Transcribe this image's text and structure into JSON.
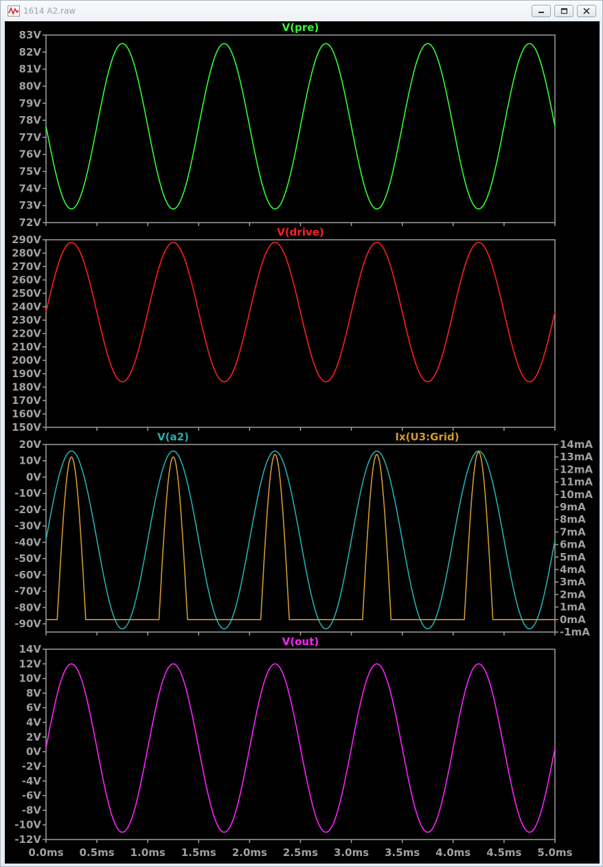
{
  "window": {
    "title": "1614 A2.raw",
    "icons": [
      "waveform-app-icon",
      "minimize-icon",
      "restore-icon",
      "close-icon"
    ]
  },
  "chart_data": [
    {
      "type": "line",
      "title": "V(pre)",
      "x_ticks": [
        "0.0ms",
        "0.5ms",
        "1.0ms",
        "1.5ms",
        "2.0ms",
        "2.5ms",
        "3.0ms",
        "3.5ms",
        "4.0ms",
        "4.5ms",
        "5.0ms"
      ],
      "xlim": [
        0,
        5
      ],
      "ylim": [
        72,
        83
      ],
      "y_ticks": [
        "72V",
        "73V",
        "74V",
        "75V",
        "76V",
        "77V",
        "78V",
        "79V",
        "80V",
        "81V",
        "82V",
        "83V"
      ],
      "series": [
        {
          "name": "V(pre)",
          "color": "#33ff33",
          "kind": "sine",
          "offset": 77.65,
          "amplitude": 4.85,
          "period_ms": 1,
          "phase": -1
        }
      ]
    },
    {
      "type": "line",
      "title": "V(drive)",
      "xlim": [
        0,
        5
      ],
      "ylim": [
        150,
        290
      ],
      "y_ticks": [
        "150V",
        "160V",
        "170V",
        "180V",
        "190V",
        "200V",
        "210V",
        "220V",
        "230V",
        "240V",
        "250V",
        "260V",
        "270V",
        "280V",
        "290V"
      ],
      "series": [
        {
          "name": "V(drive)",
          "color": "#ff2020",
          "kind": "sine",
          "offset": 236,
          "amplitude": 52,
          "period_ms": 1,
          "phase": 1
        }
      ]
    },
    {
      "type": "line",
      "xlim": [
        0,
        5
      ],
      "ylim": [
        -95,
        20
      ],
      "y_ticks": [
        "-90V",
        "-80V",
        "-70V",
        "-60V",
        "-50V",
        "-40V",
        "-30V",
        "-20V",
        "-10V",
        "0V",
        "10V",
        "20V"
      ],
      "y2lim": [
        -1,
        14
      ],
      "y2_ticks": [
        "-1mA",
        "0mA",
        "1mA",
        "2mA",
        "3mA",
        "4mA",
        "5mA",
        "6mA",
        "7mA",
        "8mA",
        "9mA",
        "10mA",
        "11mA",
        "12mA",
        "13mA",
        "14mA"
      ],
      "series": [
        {
          "name": "V(a2)",
          "color": "#22b0b0",
          "kind": "sine",
          "offset": -38.5,
          "amplitude": 54.5,
          "period_ms": 1,
          "phase": 1,
          "axis": "left"
        },
        {
          "name": "Ix(U3:Grid)",
          "color": "#d49a2e",
          "kind": "pulse",
          "peaks_mA": [
            13.0,
            13.0,
            13.2,
            13.2,
            13.4
          ],
          "half_width_ms": 0.14,
          "axis": "right"
        }
      ]
    },
    {
      "type": "line",
      "title": "V(out)",
      "xlim": [
        0,
        5
      ],
      "ylim": [
        -12,
        14
      ],
      "y_ticks": [
        "-12V",
        "-10V",
        "-8V",
        "-6V",
        "-4V",
        "-2V",
        "0V",
        "2V",
        "4V",
        "6V",
        "8V",
        "10V",
        "12V",
        "14V"
      ],
      "series": [
        {
          "name": "V(out)",
          "color": "#ff22ff",
          "kind": "sine",
          "offset": 0.5,
          "amplitude": 11.5,
          "period_ms": 1,
          "phase": 1
        }
      ]
    }
  ]
}
